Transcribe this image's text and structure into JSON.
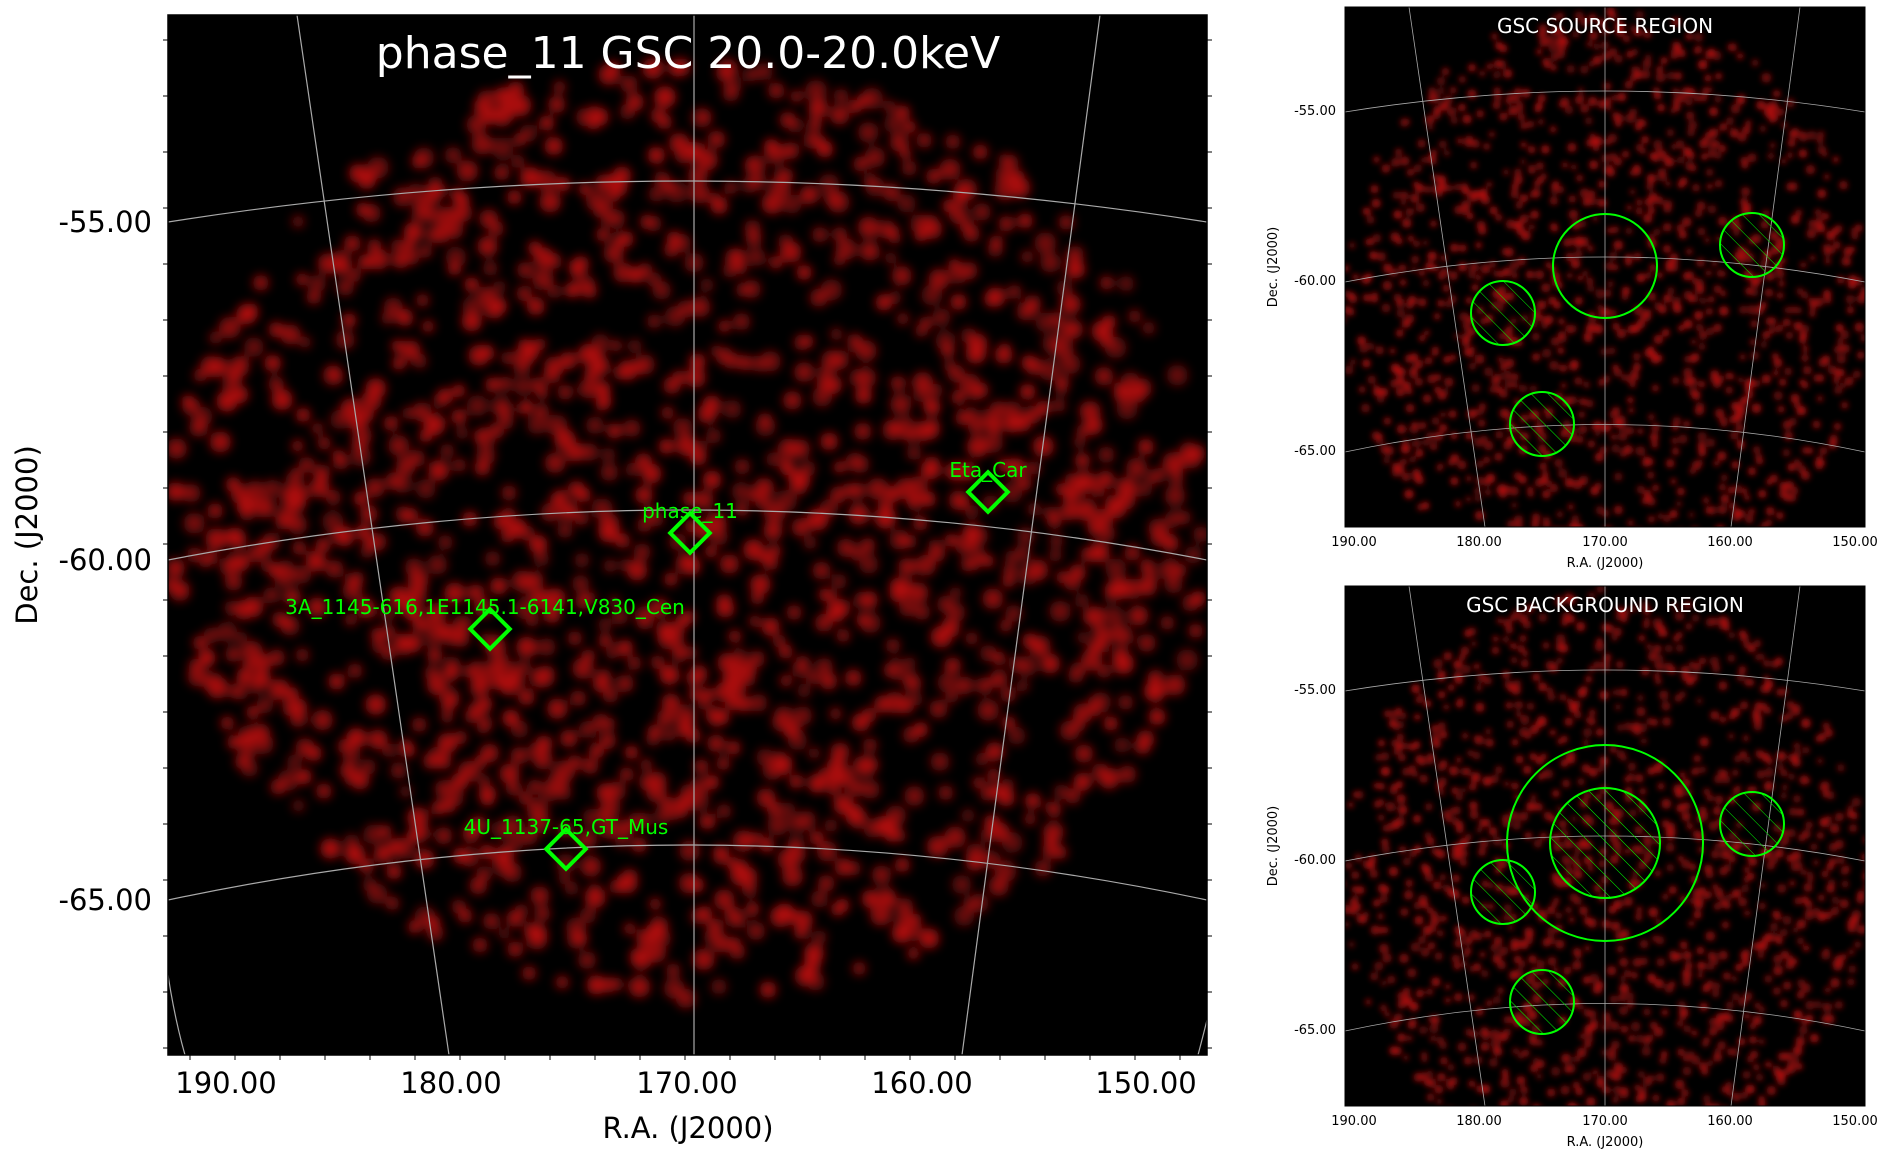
{
  "main": {
    "title": "phase_11 GSC 20.0-20.0keV",
    "xlabel": "R.A. (J2000)",
    "ylabel": "Dec. (J2000)",
    "xticks": [
      "190.00",
      "180.00",
      "170.00",
      "160.00",
      "150.00"
    ],
    "yticks": [
      "-55.00",
      "-60.00",
      "-65.00"
    ],
    "sources": [
      {
        "label": "Eta_Car",
        "ra": 158.0,
        "dec": -59.1
      },
      {
        "label": "phase_11",
        "ra": 170.0,
        "dec": -59.6
      },
      {
        "label": "3A_1145-616,1E1145.1-6141,V830_Cen",
        "ra": 178.3,
        "dec": -61.2
      },
      {
        "label": "4U_1137-65,GT_Mus",
        "ra": 175.0,
        "dec": -64.2
      }
    ]
  },
  "source_panel": {
    "title": "GSC SOURCE REGION",
    "xlabel": "R.A. (J2000)",
    "ylabel": "Dec. (J2000)",
    "xticks": [
      "190.00",
      "180.00",
      "170.00",
      "160.00",
      "150.00"
    ],
    "yticks": [
      "-55.00",
      "-60.00",
      "-65.00"
    ]
  },
  "background_panel": {
    "title": "GSC BACKGROUND REGION",
    "xlabel": "R.A. (J2000)",
    "ylabel": "Dec. (J2000)",
    "xticks": [
      "190.00",
      "180.00",
      "170.00",
      "160.00",
      "150.00"
    ],
    "yticks": [
      "-55.00",
      "-60.00",
      "-65.00"
    ]
  },
  "colors": {
    "background": "#000000",
    "counts": "#b01010",
    "markers": "#00ff00",
    "grid": "#aaaaaa",
    "title_text": "#ffffff",
    "axis_text": "#000000"
  }
}
